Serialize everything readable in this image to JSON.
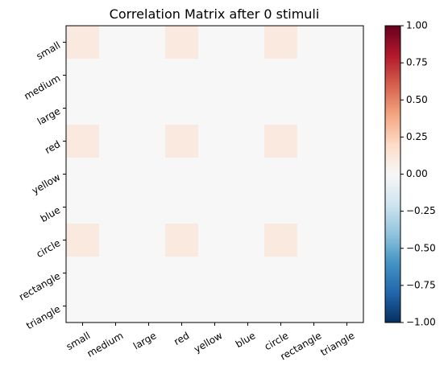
{
  "chart_data": {
    "type": "heatmap",
    "title": "Correlation Matrix after 0 stimuli",
    "xlabel": "",
    "ylabel": "",
    "x_categories": [
      "small",
      "medium",
      "large",
      "red",
      "yellow",
      "blue",
      "circle",
      "rectangle",
      "triangle"
    ],
    "y_categories": [
      "small",
      "medium",
      "large",
      "red",
      "yellow",
      "blue",
      "circle",
      "rectangle",
      "triangle"
    ],
    "values": [
      [
        0.1,
        0,
        0,
        0.1,
        0,
        0,
        0.1,
        0,
        0
      ],
      [
        0,
        0,
        0,
        0,
        0,
        0,
        0,
        0,
        0
      ],
      [
        0,
        0,
        0,
        0,
        0,
        0,
        0,
        0,
        0
      ],
      [
        0.1,
        0,
        0,
        0.1,
        0,
        0,
        0.1,
        0,
        0
      ],
      [
        0,
        0,
        0,
        0,
        0,
        0,
        0,
        0,
        0
      ],
      [
        0,
        0,
        0,
        0,
        0,
        0,
        0,
        0,
        0
      ],
      [
        0.1,
        0,
        0,
        0.1,
        0,
        0,
        0.1,
        0,
        0
      ],
      [
        0,
        0,
        0,
        0,
        0,
        0,
        0,
        0,
        0
      ],
      [
        0,
        0,
        0,
        0,
        0,
        0,
        0,
        0,
        0
      ]
    ],
    "colorbar": {
      "colormap": "RdBu_r",
      "vmin": -1.0,
      "vmax": 1.0,
      "ticks": [
        1.0,
        0.75,
        0.5,
        0.25,
        0.0,
        -0.25,
        -0.5,
        -0.75,
        -1.0
      ],
      "tick_labels": [
        "1.00",
        "0.75",
        "0.50",
        "0.25",
        "0.00",
        "−0.25",
        "−0.50",
        "−0.75",
        "−1.00"
      ]
    }
  }
}
